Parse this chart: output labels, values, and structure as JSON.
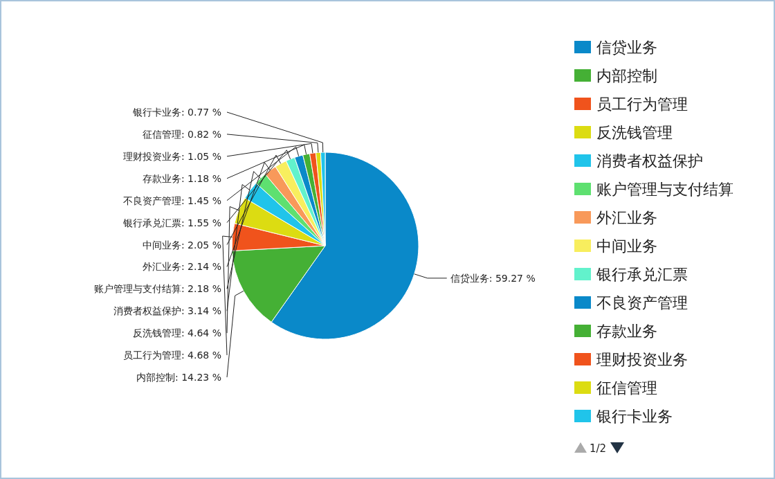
{
  "chart_data": {
    "type": "pie",
    "legend": "right",
    "categories": [
      "信贷业务",
      "内部控制",
      "员工行为管理",
      "反洗钱管理",
      "消费者权益保护",
      "账户管理与支付结算",
      "外汇业务",
      "中间业务",
      "银行承兑汇票",
      "不良资产管理",
      "存款业务",
      "理财投资业务",
      "征信管理",
      "银行卡业务"
    ],
    "values": [
      59.27,
      14.23,
      4.68,
      4.64,
      3.14,
      2.18,
      2.14,
      2.05,
      1.55,
      1.45,
      1.18,
      1.05,
      0.82,
      0.77
    ],
    "value_labels": [
      ": 59.27 %",
      ": 14.23 %",
      ": 4.68 %",
      ": 4.64 %",
      ": 3.14 %",
      ": 2.18 %",
      ": 2.14 %",
      ": 2.05 %",
      ": 1.55 %",
      ": 1.45 %",
      ": 1.18 %",
      ": 1.05 %",
      ": 0.82 %",
      ": 0.77 %"
    ],
    "colors": [
      "#0a89c9",
      "#45b035",
      "#f0531c",
      "#dcdc12",
      "#20c4ea",
      "#5ee070",
      "#f8995a",
      "#f8ee5e",
      "#62f2cc",
      "#0a89c9",
      "#45b035",
      "#f0531c",
      "#dcdc12",
      "#20c4ea"
    ],
    "annotations": [
      "1/2"
    ]
  }
}
